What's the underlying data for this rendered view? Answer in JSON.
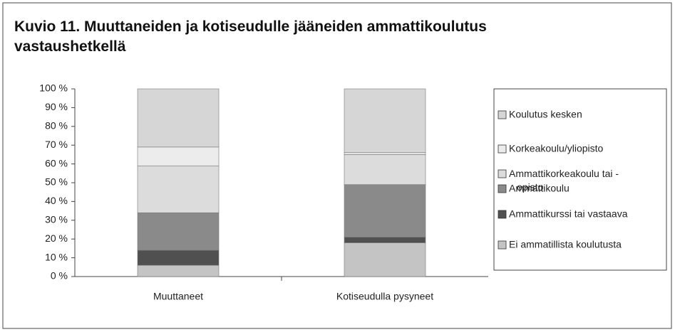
{
  "chart_data": {
    "type": "stacked_bar",
    "title": "Kuvio 11. Muuttaneiden ja kotiseudulle jääneiden ammattikoulutus vastaushetkellä",
    "categories": [
      "Muuttaneet",
      "Kotiseudulla pysyneet"
    ],
    "series": [
      {
        "name": "Ei ammatillista koulutusta",
        "color": "#c4c4c4",
        "values": [
          6,
          18
        ]
      },
      {
        "name": "Ammattikurssi tai vastaava",
        "color": "#505050",
        "values": [
          8,
          3
        ]
      },
      {
        "name": "Ammattikoulu",
        "color": "#8a8a8a",
        "values": [
          20,
          28
        ]
      },
      {
        "name": "Ammattikorkeakoulu tai - opisto",
        "color": "#dcdcdc",
        "values": [
          25,
          16
        ]
      },
      {
        "name": "Korkeakoulu/yliopisto",
        "color": "#ececec",
        "values": [
          10,
          1
        ]
      },
      {
        "name": "Koulutus kesken",
        "color": "#d6d6d6",
        "values": [
          31,
          34
        ]
      }
    ],
    "ylim": [
      0,
      100
    ],
    "yticks": [
      {
        "value": 0,
        "label": "0 %"
      },
      {
        "value": 10,
        "label": "10 %"
      },
      {
        "value": 20,
        "label": "20 %"
      },
      {
        "value": 30,
        "label": "30 %"
      },
      {
        "value": 40,
        "label": "40 %"
      },
      {
        "value": 50,
        "label": "50 %"
      },
      {
        "value": 60,
        "label": "60 %"
      },
      {
        "value": 70,
        "label": "70 %"
      },
      {
        "value": 80,
        "label": "80 %"
      },
      {
        "value": 90,
        "label": "90 %"
      },
      {
        "value": 100,
        "label": "100 %"
      }
    ],
    "legend": "right"
  }
}
